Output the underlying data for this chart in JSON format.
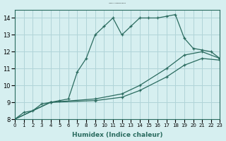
{
  "title": "Courbe de l'humidex pour Mejrup",
  "xlabel": "Humidex (Indice chaleur)",
  "ylabel": "",
  "xlim": [
    0,
    23
  ],
  "ylim": [
    8,
    14.5
  ],
  "xticks": [
    0,
    1,
    2,
    3,
    4,
    5,
    6,
    7,
    8,
    9,
    10,
    11,
    12,
    13,
    14,
    15,
    16,
    17,
    18,
    19,
    20,
    21,
    22,
    23
  ],
  "yticks": [
    8,
    9,
    10,
    11,
    12,
    13,
    14
  ],
  "bg_color": "#d6eff0",
  "line_color": "#2a6b5f",
  "grid_color": "#b0d4d8",
  "series1_x": [
    0,
    1,
    2,
    3,
    4,
    5,
    6,
    7,
    8,
    9,
    10,
    11,
    12,
    13,
    14,
    15,
    16,
    17,
    18,
    19,
    20,
    21,
    22,
    23
  ],
  "series1_y": [
    8.0,
    8.4,
    8.5,
    8.9,
    9.0,
    9.1,
    9.2,
    10.8,
    11.6,
    13.0,
    13.5,
    14.0,
    13.0,
    13.5,
    14.0,
    14.0,
    14.0,
    14.1,
    14.2,
    12.8,
    12.2,
    12.1,
    12.0,
    11.6
  ],
  "series2_x": [
    0,
    4,
    9,
    12,
    14,
    17,
    19,
    21,
    23
  ],
  "series2_y": [
    8.0,
    9.0,
    9.2,
    9.5,
    10.0,
    11.0,
    11.8,
    12.0,
    11.6
  ],
  "series3_x": [
    0,
    4,
    9,
    12,
    14,
    17,
    19,
    21,
    23
  ],
  "series3_y": [
    8.0,
    9.0,
    9.1,
    9.3,
    9.7,
    10.5,
    11.2,
    11.6,
    11.5
  ]
}
